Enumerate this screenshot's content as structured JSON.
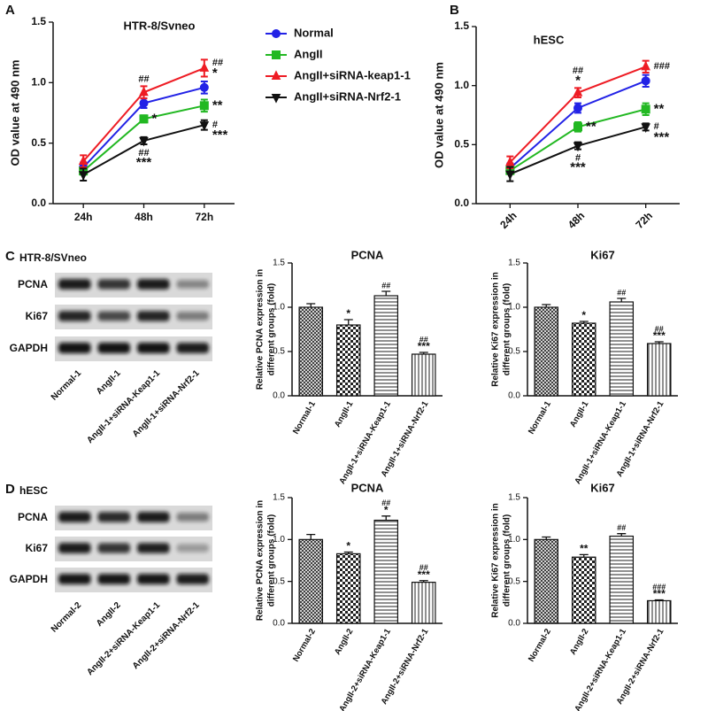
{
  "panel_labels": [
    "A",
    "B",
    "C",
    "D"
  ],
  "chart_data": [
    {
      "type": "line",
      "title": "HTR-8/Svneo",
      "ylabel": [
        "OD value at 490 nm"
      ],
      "categories": [
        "24h",
        "48h",
        "72h"
      ],
      "ylim": [
        0,
        1.5
      ],
      "yticks": [
        {
          "value": 0,
          "label": "0.0"
        },
        {
          "value": 0.5,
          "label": "0.5"
        },
        {
          "value": 1,
          "label": "1.0"
        },
        {
          "value": 1.5,
          "label": "1.5"
        }
      ],
      "legend": true,
      "series": [
        {
          "name": "Normal",
          "color": "#2222e6",
          "marker": "circle",
          "values": [
            0.3,
            0.83,
            0.96
          ],
          "errors": [
            0.04,
            0.04,
            0.05
          ],
          "annotations": [
            null,
            null,
            null
          ]
        },
        {
          "name": "AngII",
          "color": "#22b822",
          "marker": "square",
          "values": [
            0.27,
            0.7,
            0.81
          ],
          "errors": [
            0.03,
            0.03,
            0.05
          ],
          "annotations": [
            null,
            [
              "*"
            ],
            [
              "**"
            ]
          ]
        },
        {
          "name": "AngII+siRNA-keap1-1",
          "color": "#ee1c24",
          "marker": "triangle",
          "values": [
            0.35,
            0.92,
            1.12
          ],
          "errors": [
            0.05,
            0.05,
            0.07
          ],
          "annotations": [
            null,
            [
              "##"
            ],
            [
              "##",
              "*"
            ]
          ]
        },
        {
          "name": "AngII+siRNA-Nrf2-1",
          "color": "#111111",
          "marker": "triangle-down",
          "values": [
            0.24,
            0.52,
            0.65
          ],
          "errors": [
            0.05,
            0.03,
            0.04
          ],
          "annotations": [
            null,
            [
              "##",
              "***"
            ],
            [
              "#",
              "***"
            ]
          ]
        }
      ]
    },
    {
      "type": "line",
      "title": "hESC",
      "ylabel": [
        "OD value at 490 nm"
      ],
      "categories": [
        "24h",
        "48h",
        "72h"
      ],
      "ylim": [
        0,
        1.5
      ],
      "yticks": [
        {
          "value": 0,
          "label": "0.0"
        },
        {
          "value": 0.5,
          "label": "0.5"
        },
        {
          "value": 1,
          "label": "1.0"
        },
        {
          "value": 1.5,
          "label": "1.5"
        }
      ],
      "legend": false,
      "series": [
        {
          "color": "#2222e6",
          "marker": "circle",
          "values": [
            0.3,
            0.81,
            1.04
          ],
          "errors": [
            0.04,
            0.04,
            0.05
          ],
          "annotations": [
            null,
            null,
            null
          ]
        },
        {
          "color": "#22b822",
          "marker": "square",
          "values": [
            0.28,
            0.65,
            0.8
          ],
          "errors": [
            0.03,
            0.04,
            0.05
          ],
          "annotations": [
            null,
            [
              "**"
            ],
            [
              "**"
            ]
          ]
        },
        {
          "color": "#ee1c24",
          "marker": "triangle",
          "values": [
            0.35,
            0.94,
            1.16
          ],
          "errors": [
            0.05,
            0.04,
            0.05
          ],
          "annotations": [
            null,
            [
              "##",
              "*"
            ],
            [
              "###"
            ]
          ]
        },
        {
          "color": "#111111",
          "marker": "triangle-down",
          "values": [
            0.25,
            0.49,
            0.65
          ],
          "errors": [
            0.06,
            0.03,
            0.03
          ],
          "annotations": [
            null,
            [
              "#",
              "***"
            ],
            [
              "#",
              "***"
            ]
          ]
        }
      ]
    },
    {
      "type": "bar",
      "title": "PCNA",
      "ylabel": [
        "Relative PCNA expression in",
        "different groups (fold)"
      ],
      "categories": [
        "Normal-1",
        "AngII-1",
        "AngII-1+siRNA-Keap1-1",
        "AngII-1+siRNA-Nrf2-1"
      ],
      "values": [
        1.0,
        0.8,
        1.13,
        0.47
      ],
      "errors": [
        0.04,
        0.06,
        0.05,
        0.02
      ],
      "annotations": [
        null,
        [
          "*"
        ],
        [
          "##"
        ],
        [
          "##",
          "***"
        ]
      ],
      "ylim": [
        0,
        1.5
      ],
      "yticks": [
        {
          "value": 0,
          "label": "0.0"
        },
        {
          "value": 0.5,
          "label": "0.5"
        },
        {
          "value": 1,
          "label": "1.0"
        },
        {
          "value": 1.5,
          "label": "1.5"
        }
      ]
    },
    {
      "type": "bar",
      "title": "Ki67",
      "ylabel": [
        "Relative Ki67 expression in",
        "different groups (fold)"
      ],
      "categories": [
        "Normal-1",
        "AngII-1",
        "AngII-1+siRNA-Keap1-1",
        "AngII-1+siRNA-Nrf2-1"
      ],
      "values": [
        1.0,
        0.82,
        1.06,
        0.59
      ],
      "errors": [
        0.03,
        0.02,
        0.04,
        0.02
      ],
      "annotations": [
        null,
        [
          "*"
        ],
        [
          "##"
        ],
        [
          "##",
          "***"
        ]
      ],
      "ylim": [
        0,
        1.5
      ],
      "yticks": [
        {
          "value": 0,
          "label": "0.0"
        },
        {
          "value": 0.5,
          "label": "0.5"
        },
        {
          "value": 1,
          "label": "1.0"
        },
        {
          "value": 1.5,
          "label": "1.5"
        }
      ]
    },
    {
      "type": "bar",
      "title": "PCNA",
      "ylabel": [
        "Relative PCNA expression in",
        "different groups (fold)"
      ],
      "categories": [
        "Normal-2",
        "AngII-2",
        "AngII-2+siRNA-Keap1-1",
        "AngII-2+siRNA-Nrf2-1"
      ],
      "values": [
        1.0,
        0.83,
        1.23,
        0.49
      ],
      "errors": [
        0.06,
        0.02,
        0.05,
        0.02
      ],
      "annotations": [
        null,
        [
          "*"
        ],
        [
          "##",
          "*"
        ],
        [
          "##",
          "***"
        ]
      ],
      "ylim": [
        0,
        1.5
      ],
      "yticks": [
        {
          "value": 0,
          "label": "0.0"
        },
        {
          "value": 0.5,
          "label": "0.5"
        },
        {
          "value": 1,
          "label": "1.0"
        },
        {
          "value": 1.5,
          "label": "1.5"
        }
      ]
    },
    {
      "type": "bar",
      "title": "Ki67",
      "ylabel": [
        "Relative Ki67 expression in",
        "different groups (fold)"
      ],
      "categories": [
        "Normal-2",
        "AngII-2",
        "AngII-2+siRNA-Keap1-1",
        "AngII-2+siRNA-Nrf2-1"
      ],
      "values": [
        1.0,
        0.79,
        1.04,
        0.27
      ],
      "errors": [
        0.03,
        0.03,
        0.03,
        0.01
      ],
      "annotations": [
        null,
        [
          "**"
        ],
        [
          "##"
        ],
        [
          "###",
          "***"
        ]
      ],
      "ylim": [
        0,
        1.5
      ],
      "yticks": [
        {
          "value": 0,
          "label": "0.0"
        },
        {
          "value": 0.5,
          "label": "0.5"
        },
        {
          "value": 1,
          "label": "1.0"
        },
        {
          "value": 1.5,
          "label": "1.5"
        }
      ]
    }
  ],
  "blots": [
    {
      "title": "HTR-8/SVneo",
      "rows": [
        "PCNA",
        "Ki67",
        "GAPDH"
      ],
      "lanes": [
        "Normal-1",
        "AngII-1",
        "AngII-1+siRNA-Keap1-1",
        "AngII-1+siRNA-Nrf2-1"
      ]
    },
    {
      "title": "hESC",
      "rows": [
        "PCNA",
        "Ki67",
        "GAPDH"
      ],
      "lanes": [
        "Normal-2",
        "AngII-2",
        "AngII-2+siRNA-Keap1-1",
        "AngII-2+siRNA-Nrf2-1"
      ]
    }
  ]
}
